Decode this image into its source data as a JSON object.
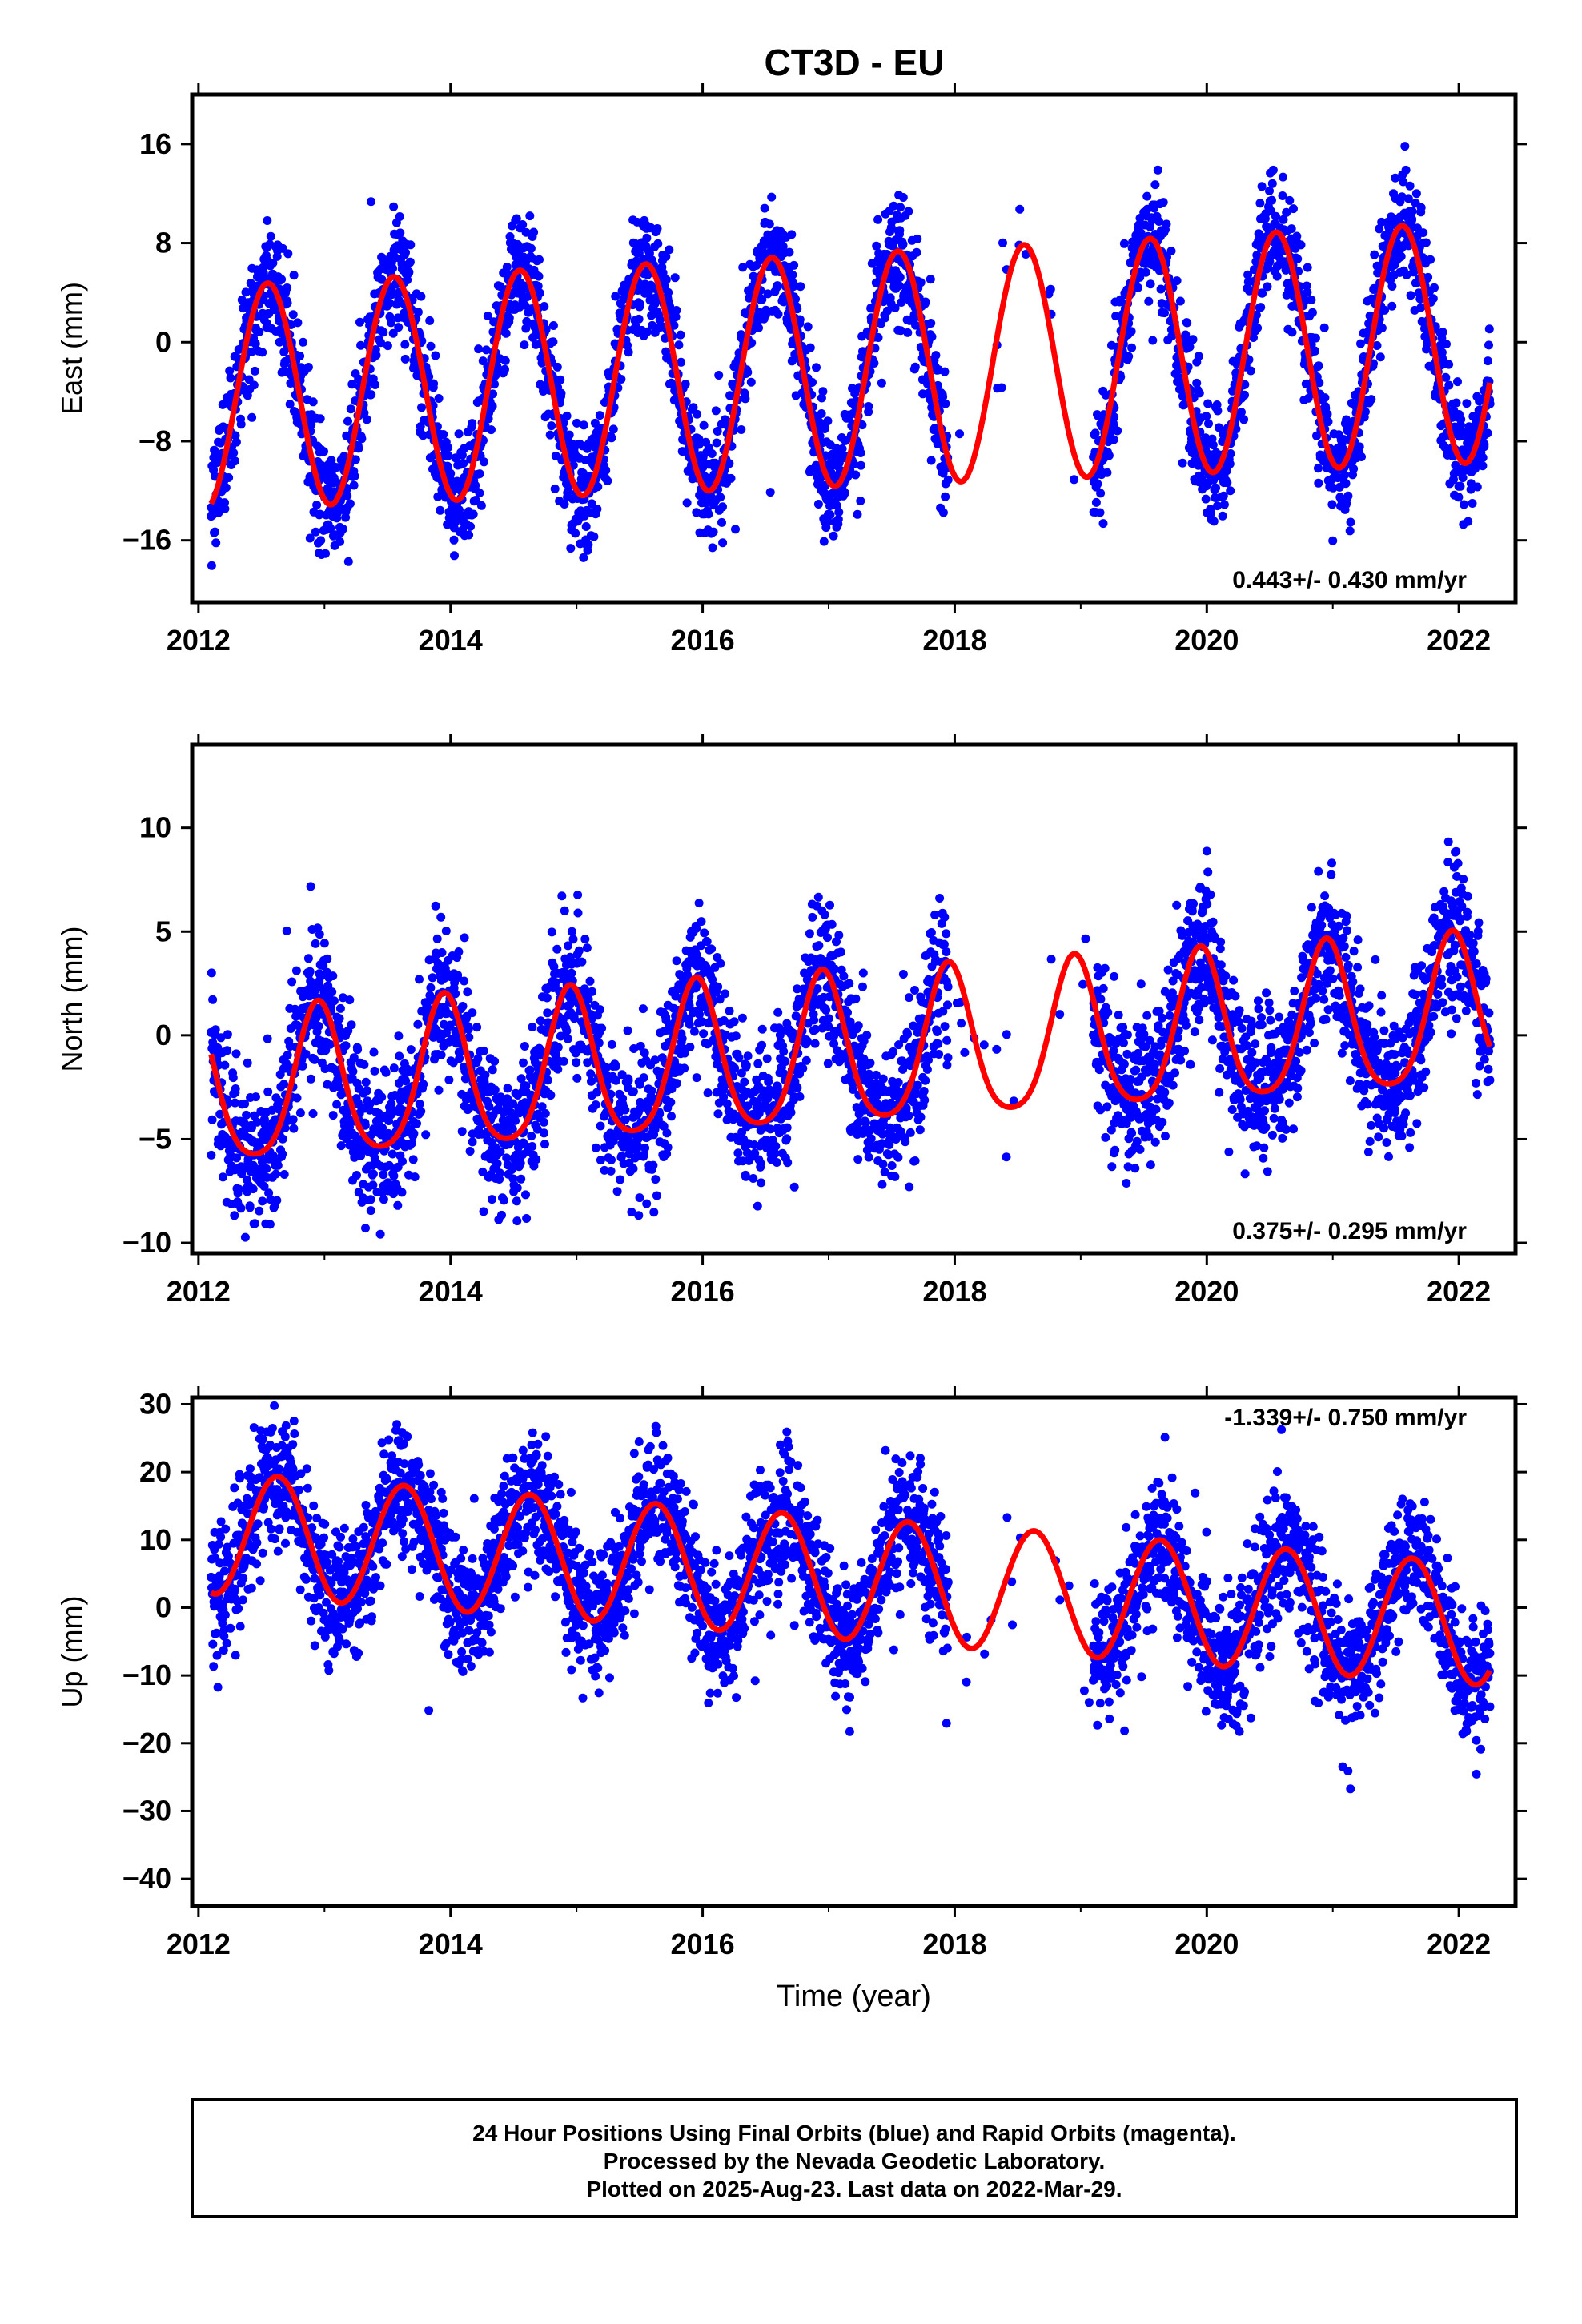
{
  "title": "CT3D - EU",
  "colors": {
    "points": "#0000ff",
    "fit": "#ff0000",
    "frame": "#000000"
  },
  "chart_data": [
    {
      "type": "scatter",
      "ylabel": "East (mm)",
      "xlim": [
        2011.95,
        2022.45
      ],
      "ylim": [
        -21,
        20
      ],
      "xticks": [
        2012,
        2014,
        2016,
        2018,
        2020,
        2022
      ],
      "yticks": [
        -16,
        -8,
        0,
        8,
        16
      ],
      "rate_label": "0.443+/- 0.430 mm/yr",
      "model": {
        "start": 2012.1,
        "end": 2022.25,
        "offset": -2.3,
        "trend": 0.443,
        "amplitude": 9.0,
        "amplitude_growth": 0.08,
        "peak_phase": 0.55,
        "semiannual": 0.0
      },
      "scatter": {
        "sigma": 2.4,
        "density": 420,
        "gaps": [
          [
            2017.95,
            2019.1
          ]
        ]
      },
      "series": [
        {
          "name": "Final Orbits (blue)",
          "kind": "points"
        },
        {
          "name": "fit",
          "kind": "line"
        }
      ]
    },
    {
      "type": "scatter",
      "ylabel": "North (mm)",
      "xlim": [
        2011.95,
        2022.45
      ],
      "ylim": [
        -10.5,
        14
      ],
      "xticks": [
        2012,
        2014,
        2016,
        2018,
        2020,
        2022
      ],
      "yticks": [
        -10,
        -5,
        0,
        5,
        10
      ],
      "rate_label": "0.375+/- 0.295 mm/yr",
      "model": {
        "start": 2012.1,
        "end": 2022.25,
        "offset": -1.0,
        "trend": 0.375,
        "amplitude": 3.6,
        "amplitude_growth": 0.0,
        "peak_phase": 0.95,
        "semiannual": 0.6
      },
      "scatter": {
        "sigma": 1.8,
        "density": 420,
        "gaps": [
          [
            2017.95,
            2019.1
          ]
        ]
      },
      "series": [
        {
          "name": "Final Orbits (blue)",
          "kind": "points"
        },
        {
          "name": "fit",
          "kind": "line"
        }
      ]
    },
    {
      "type": "scatter",
      "xlabel": "Time (year)",
      "ylabel": "Up (mm)",
      "xlim": [
        2011.95,
        2022.45
      ],
      "ylim": [
        -44,
        31
      ],
      "xticks": [
        2012,
        2014,
        2016,
        2018,
        2020,
        2022
      ],
      "yticks": [
        -40,
        -30,
        -20,
        -10,
        0,
        10,
        20,
        30
      ],
      "rate_label": "-1.339+/- 0.750 mm/yr",
      "model": {
        "start": 2012.1,
        "end": 2022.25,
        "offset": 4.5,
        "trend": -1.339,
        "amplitude": 9.0,
        "amplitude_growth": 0.0,
        "peak_phase": 0.63,
        "semiannual": 0.0
      },
      "scatter": {
        "sigma": 4.8,
        "density": 420,
        "gaps": [
          [
            2017.95,
            2019.1
          ]
        ]
      },
      "series": [
        {
          "name": "Final Orbits (blue)",
          "kind": "points"
        },
        {
          "name": "fit",
          "kind": "line"
        }
      ]
    }
  ],
  "footer": {
    "line1": "24 Hour Positions Using Final Orbits (blue) and Rapid Orbits (magenta).",
    "line2": "Processed by the Nevada Geodetic Laboratory.",
    "line3": "Plotted on 2025-Aug-23. Last data on 2022-Mar-29."
  }
}
